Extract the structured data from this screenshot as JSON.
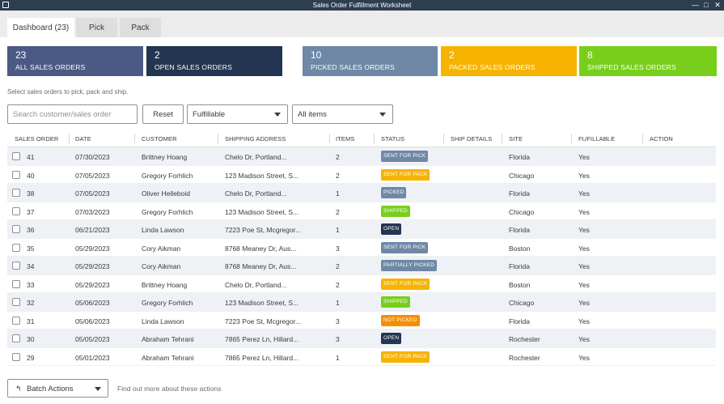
{
  "window": {
    "title": "Sales Order Fulfillment Worksheet",
    "controls": {
      "minimize": "—",
      "maximize": "□",
      "close": "✕"
    }
  },
  "tabs": [
    {
      "label": "Dashboard (23)",
      "active": true
    },
    {
      "label": "Pick",
      "active": false
    },
    {
      "label": "Pack",
      "active": false
    }
  ],
  "summary_cards": [
    {
      "count": "23",
      "label": "ALL SALES ORDERS",
      "color": "#4b5a84"
    },
    {
      "count": "2",
      "label": "OPEN SALES ORDERS",
      "color": "#233551"
    },
    {
      "count": "10",
      "label": "PICKED SALES ORDERS",
      "color": "#6e88a6"
    },
    {
      "count": "2",
      "label": "PACKED SALES ORDERS",
      "color": "#f6b300"
    },
    {
      "count": "8",
      "label": "SHIPPED SALES ORDERS",
      "color": "#77cf1c"
    }
  ],
  "instructions": "Select sales orders to pick, pack and ship.",
  "filters": {
    "search_placeholder": "Search customer/sales order",
    "reset_label": "Reset",
    "fulfillable_value": "Fulfillable",
    "items_value": "All items"
  },
  "table": {
    "headers": [
      "SALES ORDER",
      "DATE",
      "CUSTOMER",
      "SHIPPING ADDRESS",
      "ITEMS",
      "STATUS",
      "SHIP DETAILS",
      "SITE",
      "FUFILLABLE",
      "ACTION"
    ],
    "rows": [
      {
        "order": "41",
        "date": "07/30/2023",
        "customer": "Brittney Hoang",
        "address": "Chelo Dr, Portland...",
        "items": "2",
        "status": "SENT FOR PICK",
        "status_type": "pick",
        "site": "Florida",
        "fulfillable": "Yes"
      },
      {
        "order": "40",
        "date": "07/05/2023",
        "customer": "Gregory Forhlich",
        "address": "123 Madison Street, S...",
        "items": "2",
        "status": "SENT FOR PACK",
        "status_type": "pack",
        "site": "Chicago",
        "fulfillable": "Yes"
      },
      {
        "order": "38",
        "date": "07/05/2023",
        "customer": "Oliver Helleboid",
        "address": "Chelo Dr, Portland...",
        "items": "1",
        "status": "PICKED",
        "status_type": "picked",
        "site": "Florida",
        "fulfillable": "Yes"
      },
      {
        "order": "37",
        "date": "07/03/2023",
        "customer": "Gregory Forhlich",
        "address": "123 Madison Street, S...",
        "items": "2",
        "status": "SHIPPED",
        "status_type": "shipped",
        "site": "Chicago",
        "fulfillable": "Yes"
      },
      {
        "order": "36",
        "date": "06/21/2023",
        "customer": "Linda Lawson",
        "address": "7223 Poe St, Mcgregor...",
        "items": "1",
        "status": "OPEN",
        "status_type": "open",
        "site": "Florida",
        "fulfillable": "Yes"
      },
      {
        "order": "35",
        "date": "05/29/2023",
        "customer": "Cory Aikman",
        "address": "8768 Meaney Dr, Aus...",
        "items": "3",
        "status": "SENT FOR PICK",
        "status_type": "pick",
        "site": "Boston",
        "fulfillable": "Yes"
      },
      {
        "order": "34",
        "date": "05/29/2023",
        "customer": "Cory Aikman",
        "address": "8768 Meaney Dr, Aus...",
        "items": "2",
        "status": "PARTIALLY PICKED",
        "status_type": "partial",
        "site": "Florida",
        "fulfillable": "Yes"
      },
      {
        "order": "33",
        "date": "05/29/2023",
        "customer": "Brittney Hoang",
        "address": "Chelo Dr, Portland...",
        "items": "2",
        "status": "SENT FOR PACK",
        "status_type": "pack",
        "site": "Boston",
        "fulfillable": "Yes"
      },
      {
        "order": "32",
        "date": "05/06/2023",
        "customer": "Gregory Forhlich",
        "address": "123 Madison Street, S...",
        "items": "1",
        "status": "SHIPPED",
        "status_type": "shipped",
        "site": "Chicago",
        "fulfillable": "Yes"
      },
      {
        "order": "31",
        "date": "05/06/2023",
        "customer": "Linda Lawson",
        "address": "7223 Poe St, Mcgregor...",
        "items": "3",
        "status": "NOT PICKED",
        "status_type": "notpicked",
        "site": "Florida",
        "fulfillable": "Yes"
      },
      {
        "order": "30",
        "date": "05/05/2023",
        "customer": "Abraham Tehrani",
        "address": "7865 Perez Ln, Hillard...",
        "items": "3",
        "status": "OPEN",
        "status_type": "open",
        "site": "Rochester",
        "fulfillable": "Yes"
      },
      {
        "order": "29",
        "date": "05/01/2023",
        "customer": "Abraham Tehrani",
        "address": "7865 Perez Ln, Hillard...",
        "items": "1",
        "status": "SENT FOR PACK",
        "status_type": "pack",
        "site": "Rochester",
        "fulfillable": "Yes"
      }
    ]
  },
  "footer": {
    "batch_icon": "↰",
    "batch_label": "Batch Actions",
    "learn_more": "Find out more about these actions"
  }
}
